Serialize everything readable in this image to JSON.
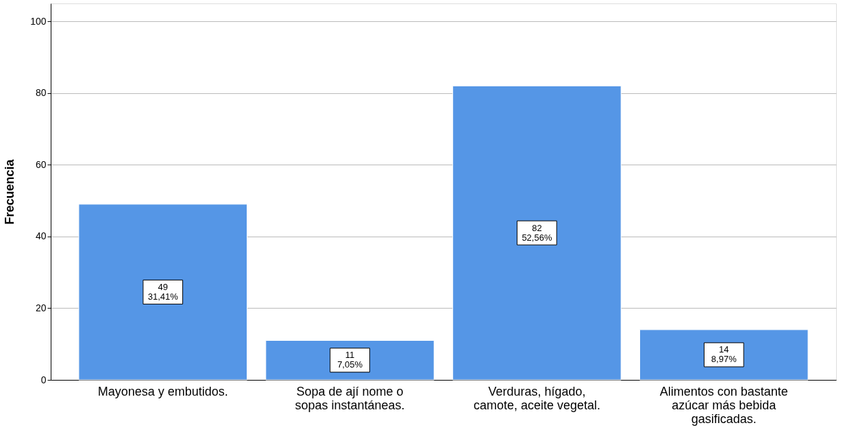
{
  "chart_data": {
    "type": "bar",
    "ylabel": "Frecuencia",
    "categories": [
      "Mayonesa y embutidos.",
      "Sopa de ají nome o\nsopas instantáneas.",
      "Verduras, hígado,\ncamote, aceite vegetal.",
      "Alimentos con bastante\nazúcar más bebida\ngasificadas."
    ],
    "values": [
      49,
      11,
      82,
      14
    ],
    "value_labels": [
      "49\n31,41%",
      "11\n7,05%",
      "82\n52,56%",
      "14\n8,97%"
    ],
    "color": "#5596e6",
    "ylim": [
      0,
      105
    ],
    "yticks": [
      0,
      20,
      40,
      60,
      80,
      100
    ],
    "grid": "y"
  }
}
